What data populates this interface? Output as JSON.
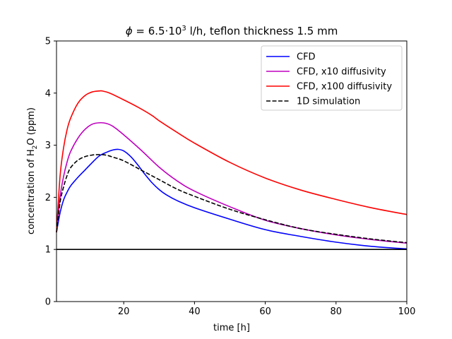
{
  "chart_data": {
    "type": "line",
    "title_phi": "ϕ",
    "title_eq": " = 6.5·10",
    "title_exp": "3",
    "title_rest": " l/h, teflon thickness 1.5 mm",
    "xlabel": "time [h]",
    "ylabel_pre": "concentration of H",
    "ylabel_sub": "2",
    "ylabel_post": "O (ppm)",
    "xlim": [
      1,
      100
    ],
    "ylim": [
      0,
      5
    ],
    "xticks": [
      20,
      40,
      60,
      80,
      100
    ],
    "yticks": [
      0,
      1,
      2,
      3,
      4,
      5
    ],
    "legend_position": "upper right",
    "reference_line": {
      "y": 1,
      "color": "#000000"
    },
    "series": [
      {
        "name": "CFD",
        "color": "#0000ff",
        "dash": "solid",
        "x": [
          1,
          2,
          3,
          4,
          5,
          7,
          9,
          11,
          13,
          15,
          17,
          18.5,
          20,
          22,
          24,
          26,
          28,
          30,
          32,
          35,
          40,
          50,
          60,
          70,
          80,
          90,
          100
        ],
        "y": [
          1.33,
          1.7,
          1.95,
          2.1,
          2.22,
          2.38,
          2.52,
          2.66,
          2.79,
          2.86,
          2.91,
          2.92,
          2.89,
          2.78,
          2.62,
          2.44,
          2.28,
          2.15,
          2.05,
          1.94,
          1.8,
          1.58,
          1.38,
          1.25,
          1.14,
          1.06,
          1.01
        ]
      },
      {
        "name": "CFD, x10 diffusivity",
        "color": "#bf00bf",
        "dash": "solid",
        "x": [
          1,
          2,
          3,
          4,
          5,
          7,
          9,
          11,
          13,
          15,
          17,
          20,
          25,
          30,
          35,
          40,
          50,
          60,
          70,
          80,
          90,
          100
        ],
        "y": [
          1.33,
          2.0,
          2.4,
          2.68,
          2.88,
          3.13,
          3.3,
          3.4,
          3.43,
          3.42,
          3.36,
          3.2,
          2.9,
          2.58,
          2.32,
          2.12,
          1.82,
          1.56,
          1.4,
          1.28,
          1.19,
          1.12
        ]
      },
      {
        "name": "CFD, x100 diffusivity",
        "color": "#ff0000",
        "dash": "solid",
        "x": [
          1,
          2,
          3,
          4,
          5,
          7,
          9,
          11,
          13,
          14,
          16,
          20,
          24,
          28,
          30,
          35,
          40,
          50,
          60,
          70,
          80,
          90,
          100
        ],
        "y": [
          1.33,
          2.4,
          2.95,
          3.3,
          3.52,
          3.8,
          3.95,
          4.02,
          4.04,
          4.04,
          4.0,
          3.87,
          3.73,
          3.57,
          3.47,
          3.25,
          3.04,
          2.67,
          2.37,
          2.14,
          1.96,
          1.8,
          1.67
        ]
      },
      {
        "name": "1D simulation",
        "color": "#000000",
        "dash": "dashed",
        "x": [
          1,
          2,
          3,
          4,
          5,
          7,
          9,
          11,
          13,
          15,
          17,
          20,
          25,
          30,
          35,
          40,
          50,
          60,
          70,
          80,
          90,
          100
        ],
        "y": [
          1.33,
          1.9,
          2.2,
          2.42,
          2.57,
          2.71,
          2.78,
          2.81,
          2.82,
          2.81,
          2.77,
          2.7,
          2.52,
          2.34,
          2.16,
          2.02,
          1.77,
          1.57,
          1.4,
          1.29,
          1.2,
          1.13
        ]
      }
    ]
  }
}
